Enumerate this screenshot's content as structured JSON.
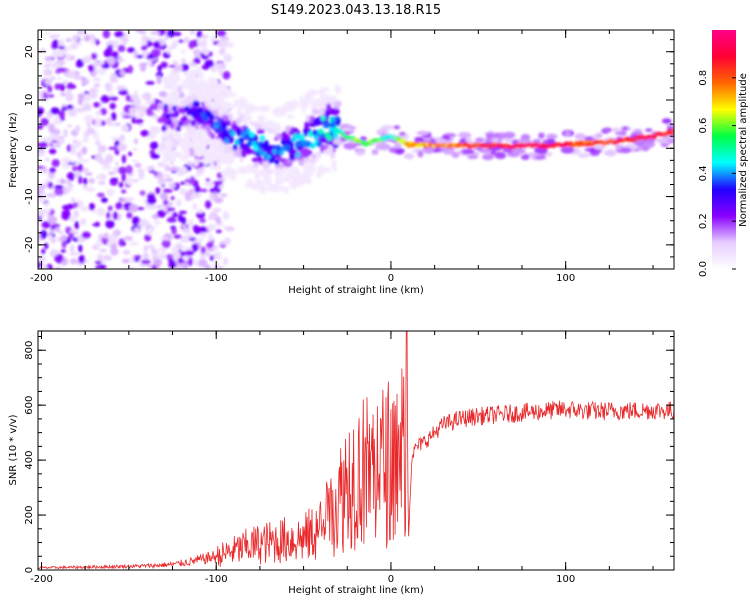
{
  "title": "S149.2023.043.13.18.R15",
  "chart_data": [
    {
      "type": "heatmap",
      "xlabel": "Height of straight line (km)",
      "ylabel": "Frequency (Hz)",
      "xlim": [
        -202,
        162
      ],
      "ylim": [
        -25,
        24.5
      ],
      "xticks": [
        -200,
        -100,
        0,
        100
      ],
      "yticks": [
        -20,
        -10,
        0,
        10,
        20
      ],
      "colorbar": {
        "label": "Normalized spectral amplitude",
        "range": [
          0,
          1
        ],
        "ticks": [
          "0.0",
          "0.2",
          "0.4",
          "0.6",
          "0.8"
        ],
        "tick_values": [
          0,
          0.2,
          0.4,
          0.6,
          0.8
        ],
        "colors": [
          "#ffffff",
          "#e6ccff",
          "#8800ff",
          "#2200ff",
          "#00ffff",
          "#00ff44",
          "#ffff00",
          "#ff6600",
          "#ff0033",
          "#ff0088"
        ]
      },
      "ridge": [
        {
          "x": -125,
          "f": 6.2,
          "a": 0.25
        },
        {
          "x": -110,
          "f": 7.2,
          "a": 0.3
        },
        {
          "x": -95,
          "f": 3.5,
          "a": 0.35
        },
        {
          "x": -80,
          "f": 1.0,
          "a": 0.4
        },
        {
          "x": -65,
          "f": -0.5,
          "a": 0.35
        },
        {
          "x": -50,
          "f": 1.5,
          "a": 0.4
        },
        {
          "x": -35,
          "f": 4.5,
          "a": 0.45
        },
        {
          "x": -25,
          "f": 2.5,
          "a": 0.55
        },
        {
          "x": -15,
          "f": 1.0,
          "a": 0.6
        },
        {
          "x": 0,
          "f": 2.5,
          "a": 0.5
        },
        {
          "x": 10,
          "f": 0.8,
          "a": 0.7
        },
        {
          "x": 30,
          "f": 0.5,
          "a": 0.75
        },
        {
          "x": 50,
          "f": 0.6,
          "a": 0.85
        },
        {
          "x": 70,
          "f": 0.5,
          "a": 0.9
        },
        {
          "x": 90,
          "f": 0.5,
          "a": 0.95
        },
        {
          "x": 110,
          "f": 1.0,
          "a": 0.8
        },
        {
          "x": 130,
          "f": 1.5,
          "a": 0.85
        },
        {
          "x": 150,
          "f": 2.5,
          "a": 0.95
        },
        {
          "x": 162,
          "f": 3.5,
          "a": 0.8
        }
      ]
    },
    {
      "type": "line",
      "xlabel": "Height of straight line (km)",
      "ylabel": "SNR (10 * v/v)",
      "xlim": [
        -202,
        162
      ],
      "ylim": [
        0,
        870
      ],
      "xticks": [
        -200,
        -100,
        0,
        100
      ],
      "yticks": [
        0,
        200,
        400,
        600,
        800
      ],
      "color": "#e8282a",
      "series": [
        {
          "name": "SNR",
          "x": [
            -202,
            -180,
            -160,
            -140,
            -125,
            -115,
            -100,
            -90,
            -80,
            -70,
            -60,
            -50,
            -40,
            -30,
            -25,
            -20,
            -15,
            -10,
            -5,
            0,
            5,
            8,
            9,
            10,
            12,
            15,
            20,
            25,
            30,
            40,
            50,
            60,
            70,
            80,
            90,
            100,
            110,
            120,
            130,
            140,
            150,
            162
          ],
          "y": [
            8,
            10,
            12,
            15,
            20,
            30,
            50,
            70,
            90,
            100,
            110,
            115,
            150,
            250,
            330,
            350,
            360,
            370,
            380,
            400,
            430,
            450,
            870,
            110,
            420,
            450,
            470,
            500,
            530,
            550,
            560,
            565,
            570,
            575,
            580,
            585,
            580,
            578,
            580,
            580,
            582,
            580
          ]
        }
      ]
    }
  ]
}
